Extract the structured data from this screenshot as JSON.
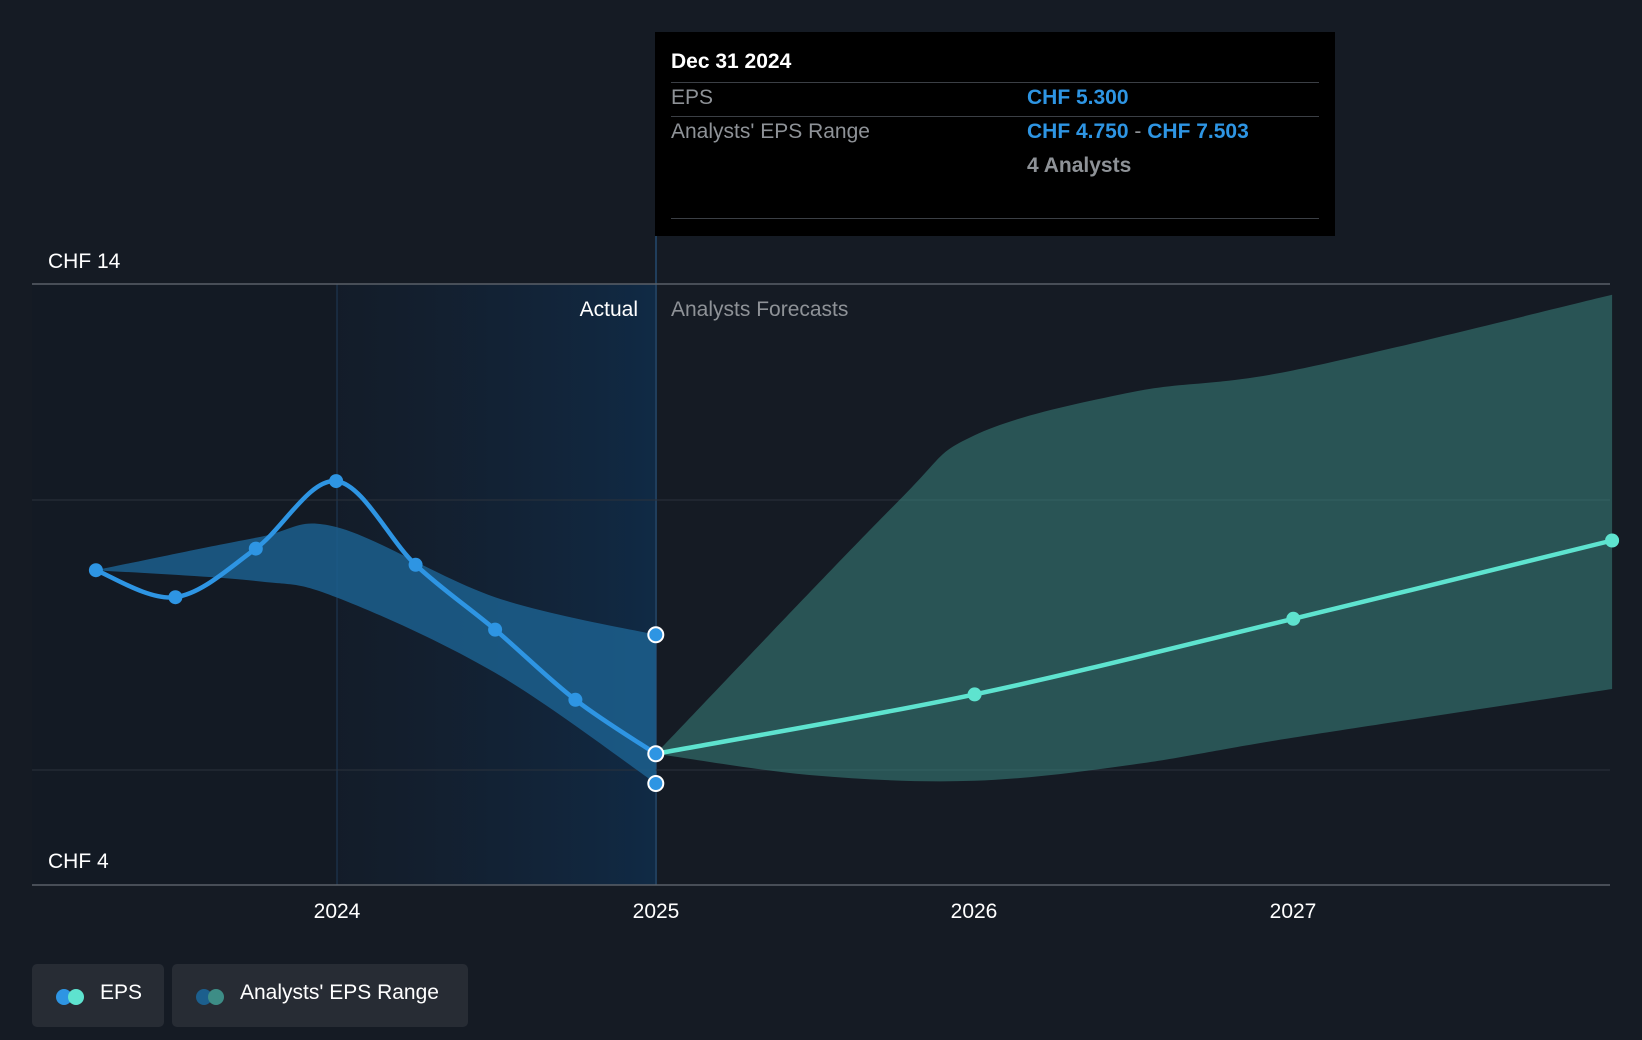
{
  "chart_data": {
    "type": "line",
    "y_axis": {
      "ylim": [
        4,
        14
      ],
      "tick_labels": [
        "CHF 14",
        "CHF 4"
      ],
      "gridlines": [
        14,
        10,
        5
      ]
    },
    "x_axis": {
      "tick_labels": [
        "2024",
        "2025",
        "2026",
        "2027"
      ]
    },
    "divider": {
      "at": "2025-01-01",
      "left_label": "Actual",
      "right_label": "Analysts Forecasts"
    },
    "series": [
      {
        "name": "EPS",
        "kind": "actual",
        "color": "#2e95e3",
        "points": [
          [
            "2023-03-31",
            8.7
          ],
          [
            "2023-06-30",
            8.2
          ],
          [
            "2023-09-30",
            9.1
          ],
          [
            "2023-12-31",
            10.35
          ],
          [
            "2024-03-31",
            8.8
          ],
          [
            "2024-06-30",
            7.6
          ],
          [
            "2024-09-30",
            6.3
          ],
          [
            "2024-12-31",
            5.3
          ]
        ]
      },
      {
        "name": "EPS",
        "kind": "forecast",
        "color": "#5ee3cf",
        "points": [
          [
            "2024-12-31",
            5.3
          ],
          [
            "2025-12-31",
            6.4
          ],
          [
            "2026-12-31",
            7.8
          ],
          [
            "2027-12-31",
            9.25
          ]
        ]
      },
      {
        "name": "Analysts' EPS Range",
        "kind": "actual-range",
        "color": "#2e95e3",
        "upper": [
          [
            "2023-03-31",
            8.7
          ],
          [
            "2023-09-30",
            9.3
          ],
          [
            "2023-12-31",
            9.5
          ],
          [
            "2024-06-30",
            8.2
          ],
          [
            "2024-12-31",
            7.503
          ]
        ],
        "lower": [
          [
            "2023-03-31",
            8.7
          ],
          [
            "2023-09-30",
            8.5
          ],
          [
            "2023-12-31",
            8.2
          ],
          [
            "2024-06-30",
            6.8
          ],
          [
            "2024-12-31",
            4.75
          ]
        ]
      },
      {
        "name": "Analysts' EPS Range",
        "kind": "forecast-range",
        "color": "#5ee3cf",
        "upper": [
          [
            "2024-12-31",
            5.3
          ],
          [
            "2025-09-30",
            9.9
          ],
          [
            "2025-12-31",
            11.2
          ],
          [
            "2026-06-30",
            12.0
          ],
          [
            "2026-12-31",
            12.4
          ],
          [
            "2027-12-31",
            13.8
          ]
        ],
        "lower": [
          [
            "2024-12-31",
            5.3
          ],
          [
            "2025-06-30",
            4.9
          ],
          [
            "2025-12-31",
            4.8
          ],
          [
            "2026-06-30",
            5.1
          ],
          [
            "2026-12-31",
            5.6
          ],
          [
            "2027-12-31",
            6.5
          ]
        ]
      }
    ]
  },
  "tooltip": {
    "date": "Dec 31 2024",
    "eps_label": "EPS",
    "eps_value": "CHF 5.300",
    "range_label": "Analysts' EPS Range",
    "range_low": "CHF 4.750",
    "range_sep": "-",
    "range_high": "CHF 7.503",
    "analysts": "4 Analysts"
  },
  "legend": {
    "eps": "EPS",
    "range": "Analysts' EPS Range",
    "colors": {
      "eps_actual": "#2e95e3",
      "eps_forecast": "#5ee3cf",
      "range_actual": "#1c5f8d",
      "range_forecast": "#3d8d86"
    }
  }
}
